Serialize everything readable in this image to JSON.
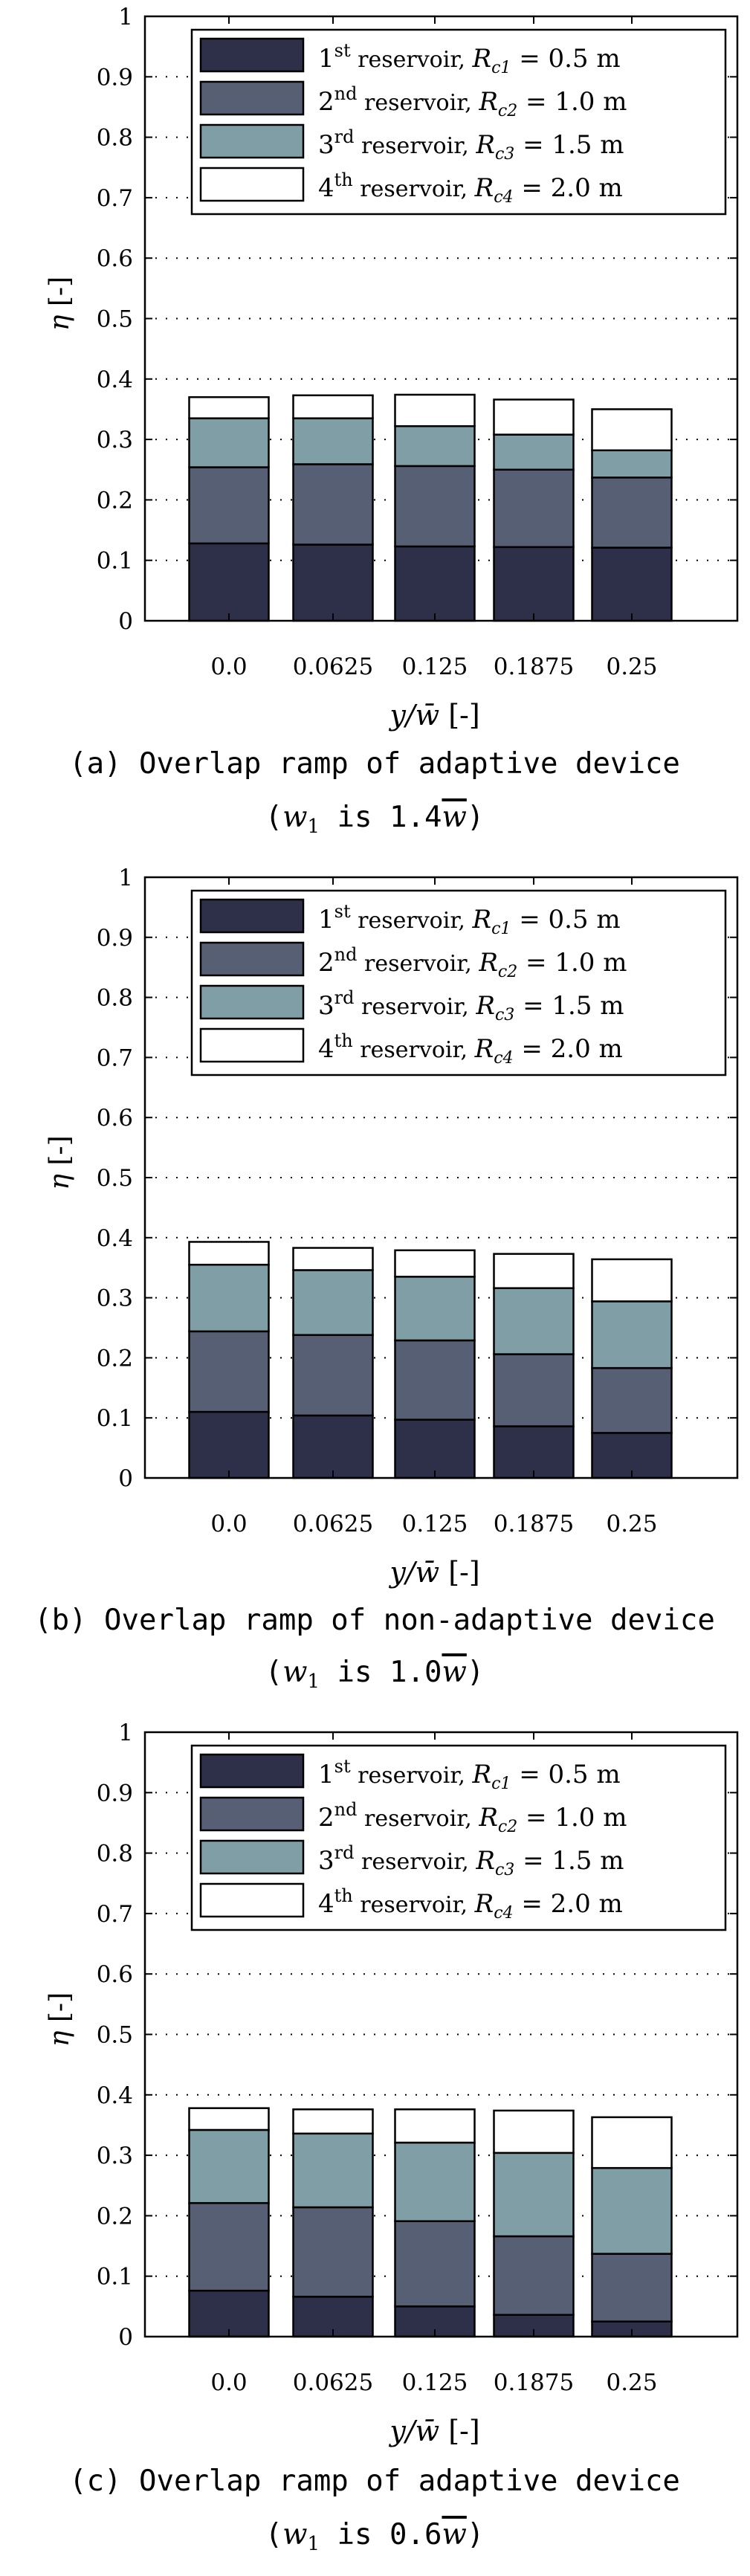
{
  "colors": {
    "r1": "#2e3049",
    "r2": "#565f74",
    "r3": "#7f9ea6",
    "r4": "#ffffff",
    "axis": "#000000",
    "grid": "#000000"
  },
  "legend_sup": [
    "st",
    "nd",
    "rd",
    "th"
  ],
  "chart_data": [
    {
      "type": "bar",
      "stacked": true,
      "categories": [
        "0.0",
        "0.0625",
        "0.125",
        "0.1875",
        "0.25"
      ],
      "ylabel": "η [-]",
      "xlabel": "y/w̄ [-]",
      "ylim": [
        0,
        1
      ],
      "yticks": [
        "0",
        "0.1",
        "0.2",
        "0.3",
        "0.4",
        "0.5",
        "0.6",
        "0.7",
        "0.8",
        "0.9",
        "1"
      ],
      "grid": true,
      "legend_position": "top",
      "series": [
        {
          "name": "1st reservoir, Rc1 = 0.5 m",
          "num": "1",
          "sub": "1",
          "value_text": "0.5 m",
          "values": [
            0.128,
            0.126,
            0.123,
            0.122,
            0.121
          ]
        },
        {
          "name": "2nd reservoir, Rc2 = 1.0 m",
          "num": "2",
          "sub": "2",
          "value_text": "1.0 m",
          "values": [
            0.126,
            0.133,
            0.133,
            0.128,
            0.116
          ]
        },
        {
          "name": "3rd reservoir, Rc3 = 1.5 m",
          "num": "3",
          "sub": "3",
          "value_text": "1.5 m",
          "values": [
            0.081,
            0.076,
            0.066,
            0.058,
            0.045
          ]
        },
        {
          "name": "4th reservoir, Rc4 = 2.0 m",
          "num": "4",
          "sub": "4",
          "value_text": "2.0 m",
          "values": [
            0.035,
            0.038,
            0.052,
            0.058,
            0.068
          ]
        }
      ],
      "caption": [
        "(a) Overlap ramp of adaptive device",
        "is 1.4"
      ]
    },
    {
      "type": "bar",
      "stacked": true,
      "categories": [
        "0.0",
        "0.0625",
        "0.125",
        "0.1875",
        "0.25"
      ],
      "ylabel": "η [-]",
      "xlabel": "y/w̄ [-]",
      "ylim": [
        0,
        1
      ],
      "yticks": [
        "0",
        "0.1",
        "0.2",
        "0.3",
        "0.4",
        "0.5",
        "0.6",
        "0.7",
        "0.8",
        "0.9",
        "1"
      ],
      "grid": true,
      "legend_position": "top",
      "series": [
        {
          "name": "1st reservoir, Rc1 = 0.5 m",
          "num": "1",
          "sub": "1",
          "value_text": "0.5 m",
          "values": [
            0.11,
            0.104,
            0.097,
            0.086,
            0.075
          ]
        },
        {
          "name": "2nd reservoir, Rc2 = 1.0 m",
          "num": "2",
          "sub": "2",
          "value_text": "1.0 m",
          "values": [
            0.134,
            0.134,
            0.132,
            0.12,
            0.108
          ]
        },
        {
          "name": "3rd reservoir, Rc3 = 1.5 m",
          "num": "3",
          "sub": "3",
          "value_text": "1.5 m",
          "values": [
            0.111,
            0.108,
            0.106,
            0.11,
            0.111
          ]
        },
        {
          "name": "4th reservoir, Rc4 = 2.0 m",
          "num": "4",
          "sub": "4",
          "value_text": "2.0 m",
          "values": [
            0.038,
            0.037,
            0.044,
            0.057,
            0.07
          ]
        }
      ],
      "caption": [
        "(b) Overlap ramp of non-adaptive device",
        "is 1.0"
      ]
    },
    {
      "type": "bar",
      "stacked": true,
      "categories": [
        "0.0",
        "0.0625",
        "0.125",
        "0.1875",
        "0.25"
      ],
      "ylabel": "η [-]",
      "xlabel": "y/w̄ [-]",
      "ylim": [
        0,
        1
      ],
      "yticks": [
        "0",
        "0.1",
        "0.2",
        "0.3",
        "0.4",
        "0.5",
        "0.6",
        "0.7",
        "0.8",
        "0.9",
        "1"
      ],
      "grid": true,
      "legend_position": "top",
      "series": [
        {
          "name": "1st reservoir, Rc1 = 0.5 m",
          "num": "1",
          "sub": "1",
          "value_text": "0.5 m",
          "values": [
            0.076,
            0.066,
            0.05,
            0.036,
            0.025
          ]
        },
        {
          "name": "2nd reservoir, Rc2 = 1.0 m",
          "num": "2",
          "sub": "2",
          "value_text": "1.0 m",
          "values": [
            0.145,
            0.148,
            0.141,
            0.13,
            0.112
          ]
        },
        {
          "name": "3rd reservoir, Rc3 = 1.5 m",
          "num": "3",
          "sub": "3",
          "value_text": "1.5 m",
          "values": [
            0.121,
            0.122,
            0.13,
            0.138,
            0.142
          ]
        },
        {
          "name": "4th reservoir, Rc4 = 2.0 m",
          "num": "4",
          "sub": "4",
          "value_text": "2.0 m",
          "values": [
            0.036,
            0.04,
            0.055,
            0.07,
            0.084
          ]
        }
      ],
      "caption": [
        "(c) Overlap ramp of adaptive device",
        "is 0.6"
      ]
    }
  ]
}
